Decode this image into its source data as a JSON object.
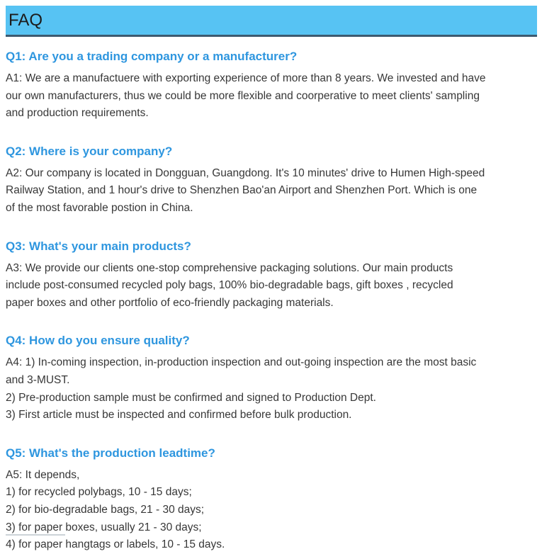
{
  "header": {
    "title": "FAQ",
    "background_color": "#57c3f3",
    "border_color": "#3d5a70"
  },
  "faq": {
    "question_color": "#2e96df",
    "answer_color": "#373737",
    "items": [
      {
        "question": "Q1: Are you a trading company or a manufacturer?",
        "answer_lines": [
          "A1: We are a manufactuere with exporting experience of more than 8 years. We invested and have",
          "our own manufacturers, thus we could be more flexible and coorperative to meet clients' sampling",
          "and production requirements."
        ]
      },
      {
        "question": "Q2: Where is your company?",
        "answer_lines": [
          "A2: Our company is located in Dongguan, Guangdong. It's 10 minutes' drive to Humen High-speed",
          "Railway Station, and 1 hour's drive to Shenzhen Bao'an Airport and Shenzhen Port. Which is one",
          "of the most favorable postion in China."
        ]
      },
      {
        "question": "Q3: What's your main products?",
        "answer_lines": [
          "A3: We provide our clients one-stop comprehensive packaging solutions. Our main products",
          "include post-consumed recycled poly bags, 100% bio-degradable bags, gift boxes , recycled",
          "paper boxes and other portfolio of eco-friendly packaging materials."
        ]
      },
      {
        "question": "Q4: How do you ensure quality?",
        "answer_lines": [
          "A4: 1) In-coming inspection, in-production inspection and out-going inspection are the most basic",
          "and 3-MUST.",
          "2) Pre-production sample must be confirmed and signed to Production Dept.",
          "3) First article must be inspected and confirmed before bulk production."
        ]
      },
      {
        "question": "Q5: What's the production leadtime?",
        "answer_lines": [
          "A5: It depends,",
          "1) for recycled polybags, 10 - 15 days;",
          "2) for bio-degradable bags, 21 - 30 days;",
          "3) for paper boxes, usually 21 - 30 days;",
          "4) for paper hangtags or labels, 10 - 15 days."
        ]
      }
    ]
  }
}
